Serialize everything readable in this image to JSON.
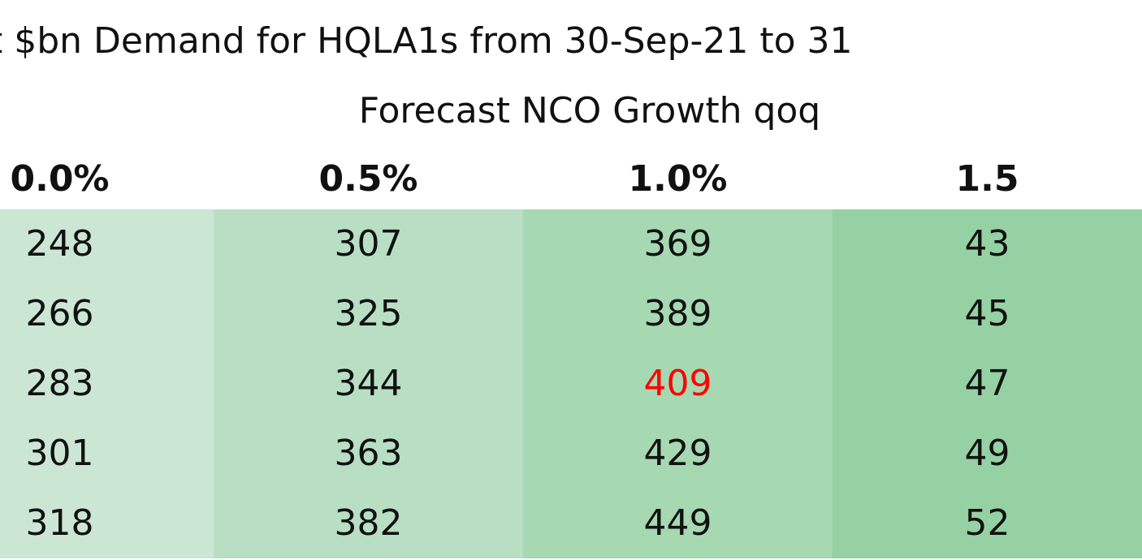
{
  "chart_data": {
    "type": "table",
    "title": "t $bn Demand for HQLA1s from 30-Sep-21 to 31",
    "column_group_label": "Forecast NCO Growth qoq",
    "columns": [
      "0.0%",
      "0.5%",
      "1.0%",
      "1.5"
    ],
    "rows": [
      [
        "248",
        "307",
        "369",
        "43"
      ],
      [
        "266",
        "325",
        "389",
        "45"
      ],
      [
        "283",
        "344",
        "409",
        "47"
      ],
      [
        "301",
        "363",
        "429",
        "49"
      ],
      [
        "318",
        "382",
        "449",
        "52"
      ]
    ],
    "column_fill_colors": [
      "#cce6d4",
      "#b8dfc3",
      "#a6d8b2",
      "#95d1a3"
    ],
    "highlight_cell": {
      "row": 2,
      "col": 2,
      "color": "#ff0000"
    }
  }
}
